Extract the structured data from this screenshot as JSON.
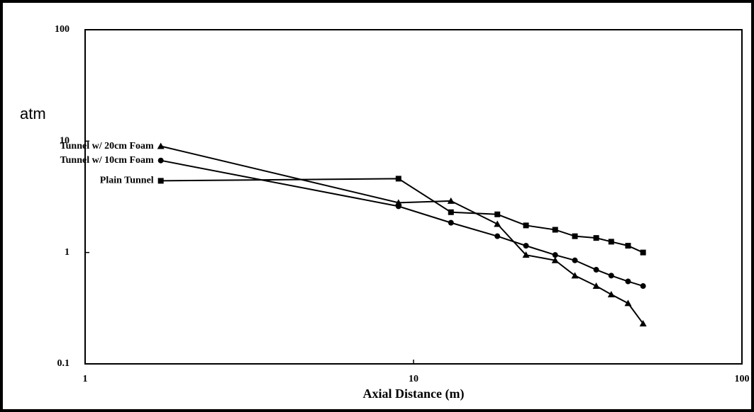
{
  "chart_data": {
    "type": "line",
    "ylabel": "atm",
    "xlabel": "Axial Distance (m)",
    "xscale": "log",
    "yscale": "log",
    "xlim": [
      1,
      100
    ],
    "xticks": [
      1,
      10,
      100
    ],
    "ylim": [
      0.1,
      100
    ],
    "yticks": [
      0.1,
      1,
      10,
      100
    ],
    "x": [
      1.7,
      9,
      13,
      18,
      22,
      27,
      31,
      36,
      40,
      45,
      50
    ],
    "series": [
      {
        "name": "Tunnel w/ 20cm Foam",
        "color": "#000000",
        "marker": "triangle",
        "values": [
          9.0,
          2.8,
          2.9,
          1.8,
          0.95,
          0.85,
          0.62,
          0.5,
          0.42,
          0.35,
          0.23
        ]
      },
      {
        "name": "Tunnel w/ 10cm Foam",
        "color": "#000000",
        "marker": "circle",
        "values": [
          6.7,
          2.6,
          1.85,
          1.4,
          1.15,
          0.95,
          0.85,
          0.7,
          0.62,
          0.55,
          0.5
        ]
      },
      {
        "name": "Plain Tunnel",
        "color": "#000000",
        "marker": "square",
        "values": [
          4.4,
          4.6,
          2.3,
          2.2,
          1.75,
          1.6,
          1.4,
          1.35,
          1.25,
          1.15,
          1.0
        ]
      }
    ]
  }
}
